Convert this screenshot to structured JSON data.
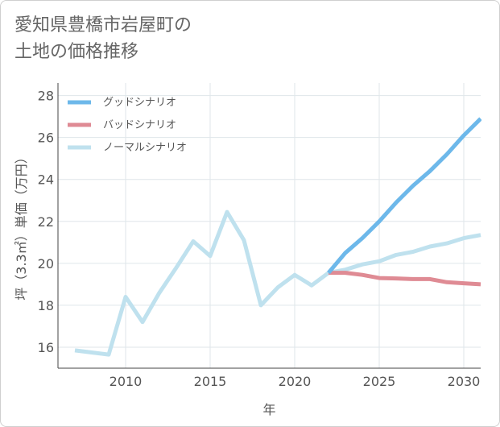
{
  "title": {
    "line1": "愛知県豊橋市岩屋町の",
    "line2": "土地の価格推移"
  },
  "chart_data": {
    "type": "line",
    "xlabel": "年",
    "ylabel": "坪（3.3㎡）単価（万円）",
    "xlim": [
      2006,
      2031
    ],
    "ylim": [
      15,
      28.6
    ],
    "x_ticks": [
      2010,
      2015,
      2020,
      2025,
      2030
    ],
    "y_ticks": [
      16,
      18,
      20,
      22,
      24,
      26,
      28
    ],
    "grid": true,
    "legend_position": "top-left",
    "series": [
      {
        "name": "グッドシナリオ",
        "color": "#6db8ea",
        "x": [
          2022,
          2023,
          2024,
          2025,
          2026,
          2027,
          2028,
          2029,
          2030,
          2031
        ],
        "values": [
          19.55,
          20.5,
          21.2,
          22.0,
          22.9,
          23.7,
          24.4,
          25.2,
          26.1,
          26.9
        ]
      },
      {
        "name": "バッドシナリオ",
        "color": "#df8b94",
        "x": [
          2022,
          2023,
          2024,
          2025,
          2026,
          2027,
          2028,
          2029,
          2030,
          2031
        ],
        "values": [
          19.55,
          19.55,
          19.45,
          19.3,
          19.28,
          19.25,
          19.25,
          19.1,
          19.05,
          19.0
        ]
      },
      {
        "name": "ノーマルシナリオ",
        "color": "#bfe1ee",
        "x": [
          2007,
          2008,
          2009,
          2010,
          2011,
          2012,
          2013,
          2014,
          2015,
          2016,
          2017,
          2018,
          2019,
          2020,
          2021,
          2022,
          2023,
          2024,
          2025,
          2026,
          2027,
          2028,
          2029,
          2030,
          2031
        ],
        "values": [
          15.85,
          15.75,
          15.65,
          18.4,
          17.2,
          18.6,
          19.8,
          21.05,
          20.35,
          22.45,
          21.1,
          18.0,
          18.85,
          19.45,
          18.95,
          19.55,
          19.7,
          19.95,
          20.1,
          20.4,
          20.55,
          20.8,
          20.95,
          21.2,
          21.35
        ]
      }
    ]
  }
}
